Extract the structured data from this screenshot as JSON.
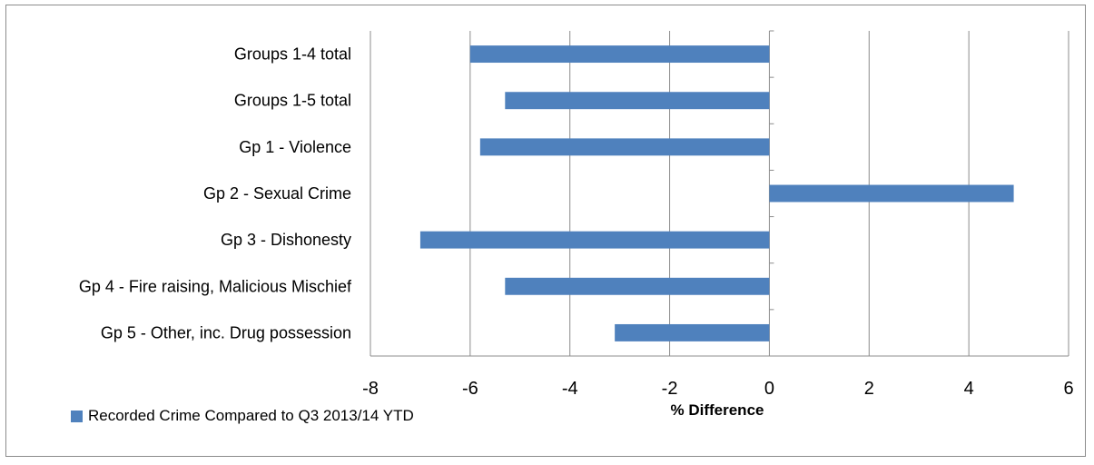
{
  "chart_data": {
    "type": "bar",
    "orientation": "horizontal",
    "categories": [
      "Groups 1-4 total",
      "Groups 1-5 total",
      "Gp 1 - Violence",
      "Gp 2 - Sexual Crime",
      "Gp 3 - Dishonesty",
      "Gp 4 - Fire raising, Malicious Mischief",
      "Gp 5 - Other, inc. Drug possession"
    ],
    "series": [
      {
        "name": "Recorded Crime Compared to Q3 2013/14 YTD",
        "values": [
          -6.0,
          -5.3,
          -5.8,
          4.9,
          -7.0,
          -5.3,
          -3.1
        ],
        "color": "#4f81bd"
      }
    ],
    "title": "",
    "xlabel": "% Difference",
    "ylabel": "",
    "xlim": [
      -8,
      6
    ],
    "xticks": [
      "-8",
      "-6",
      "-4",
      "-2",
      "0",
      "2",
      "4",
      "6"
    ],
    "grid": "vertical",
    "legend_position": "bottom-left"
  }
}
